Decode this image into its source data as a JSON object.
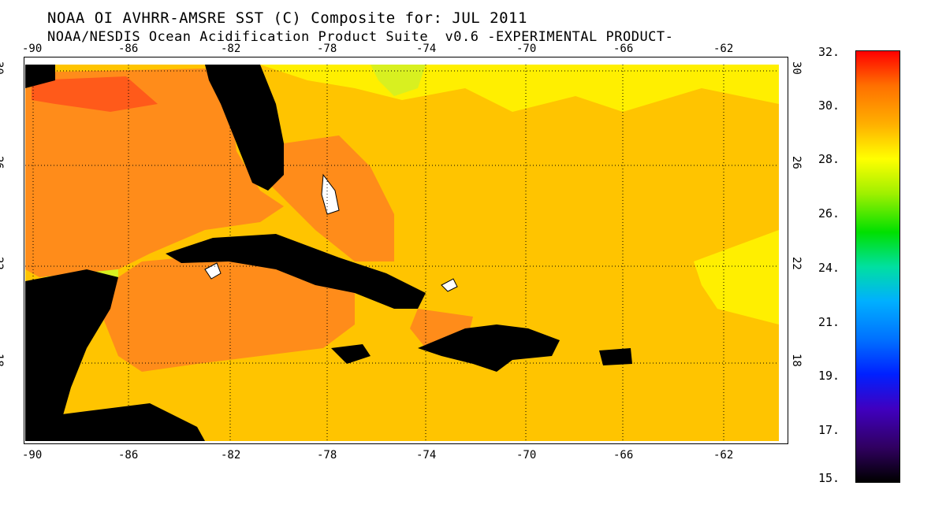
{
  "title": {
    "line1": "NOAA OI AVHRR-AMSRE SST (C) Composite for: JUL 2011",
    "line2": "NOAA/NESDIS Ocean Acidification Product Suite  v0.6 -EXPERIMENTAL PRODUCT-"
  },
  "longitude_ticks": [
    "-90",
    "-86",
    "-82",
    "-78",
    "-74",
    "-70",
    "-66",
    "-62"
  ],
  "latitude_ticks": [
    "30",
    "26",
    "22",
    "18"
  ],
  "colorbar": {
    "labels": [
      "32.",
      "30.",
      "28.",
      "26.",
      "24.",
      "21.",
      "19.",
      "17.",
      "15."
    ],
    "min": 15,
    "max": 32,
    "colors": [
      "#ff0000",
      "#ff7000",
      "#ffb000",
      "#ffff00",
      "#a0f000",
      "#00e000",
      "#00e0a0",
      "#00b0ff",
      "#0070ff",
      "#0020ff",
      "#4000c0",
      "#300060",
      "#000000"
    ]
  },
  "map": {
    "ocean_base_color": "#ffc400",
    "warm_color": "#ff8c1a",
    "hot_color": "#ff5a1a",
    "cool_color": "#ffef00",
    "coolest_color": "#d8f020",
    "land_color": "#000000"
  }
}
